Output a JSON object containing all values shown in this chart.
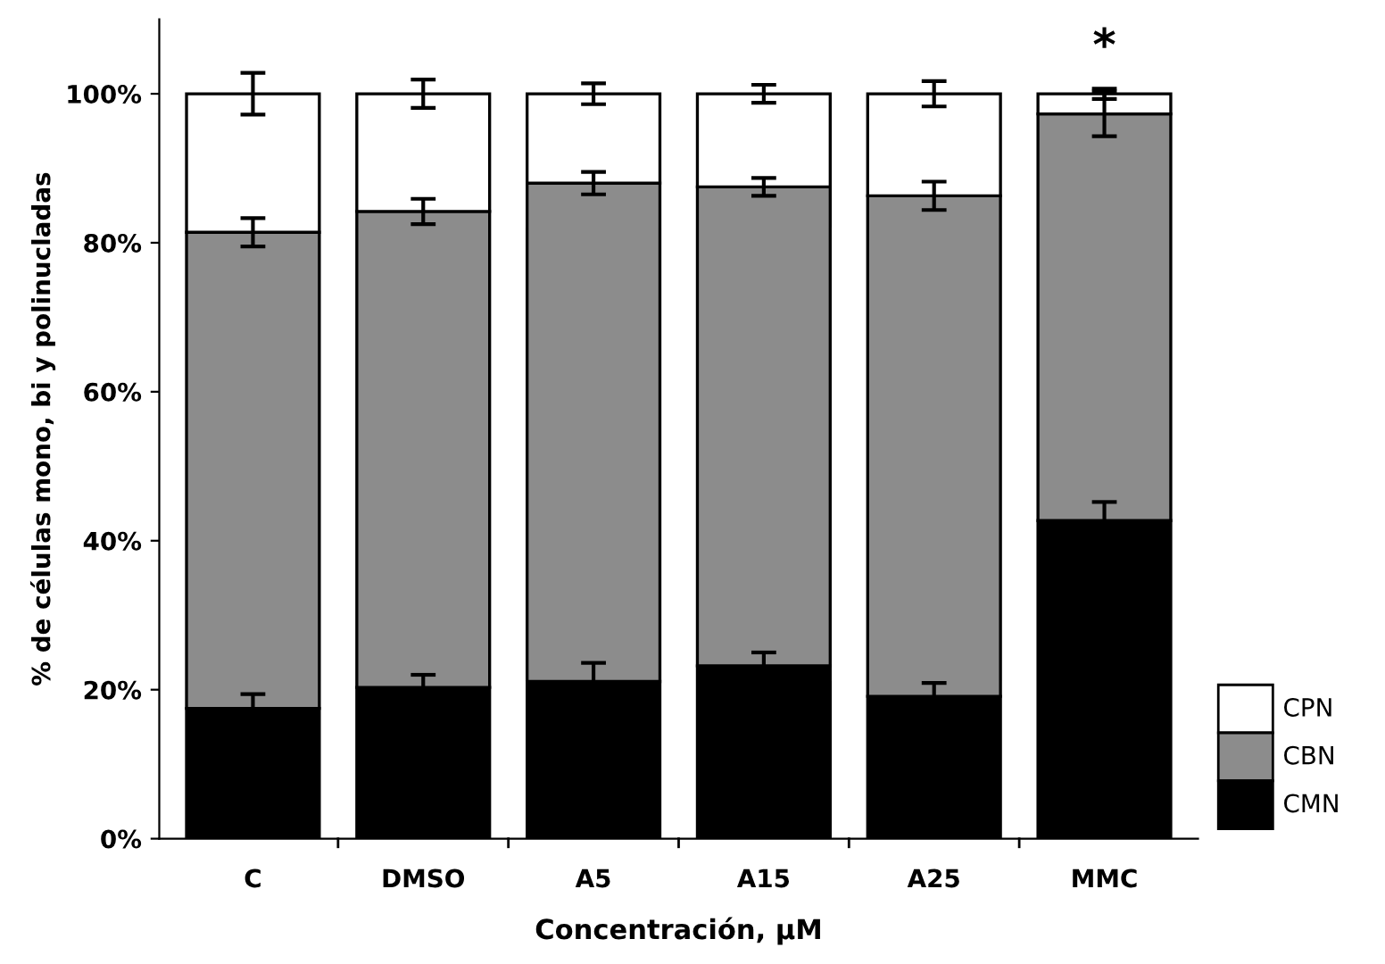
{
  "chart_data": {
    "type": "bar",
    "stacked": true,
    "xlabel": "Concentración, µM",
    "ylabel": "% de células mono, bi y polinucladas",
    "categories": [
      "C",
      "DMSO",
      "A5",
      "A15",
      "A25",
      "MMC"
    ],
    "series": [
      {
        "name": "CMN",
        "color": "#000000",
        "values": [
          17.5,
          20.3,
          21.1,
          23.2,
          19.1,
          42.7
        ],
        "errors": [
          1.9,
          1.7,
          2.5,
          1.8,
          1.8,
          2.5
        ]
      },
      {
        "name": "CBN",
        "color": "#8c8c8c",
        "values": [
          63.9,
          63.9,
          66.9,
          64.3,
          67.2,
          54.6
        ],
        "errors": [
          1.9,
          1.7,
          1.5,
          1.2,
          1.9,
          3.0
        ]
      },
      {
        "name": "CPN",
        "color": "#ffffff",
        "values": [
          18.6,
          15.8,
          12.0,
          12.5,
          13.7,
          2.7
        ],
        "errors": [
          2.8,
          1.9,
          1.4,
          1.2,
          1.7,
          0.7
        ]
      }
    ],
    "ylim": [
      0,
      110
    ],
    "yticks": [
      {
        "value": 0,
        "label": "0%"
      },
      {
        "value": 20,
        "label": "20%"
      },
      {
        "value": 40,
        "label": "40%"
      },
      {
        "value": 60,
        "label": "60%"
      },
      {
        "value": 80,
        "label": "80%"
      },
      {
        "value": 100,
        "label": "100%"
      }
    ],
    "annotations": [
      "*"
    ],
    "legend": "right",
    "grid": false
  }
}
